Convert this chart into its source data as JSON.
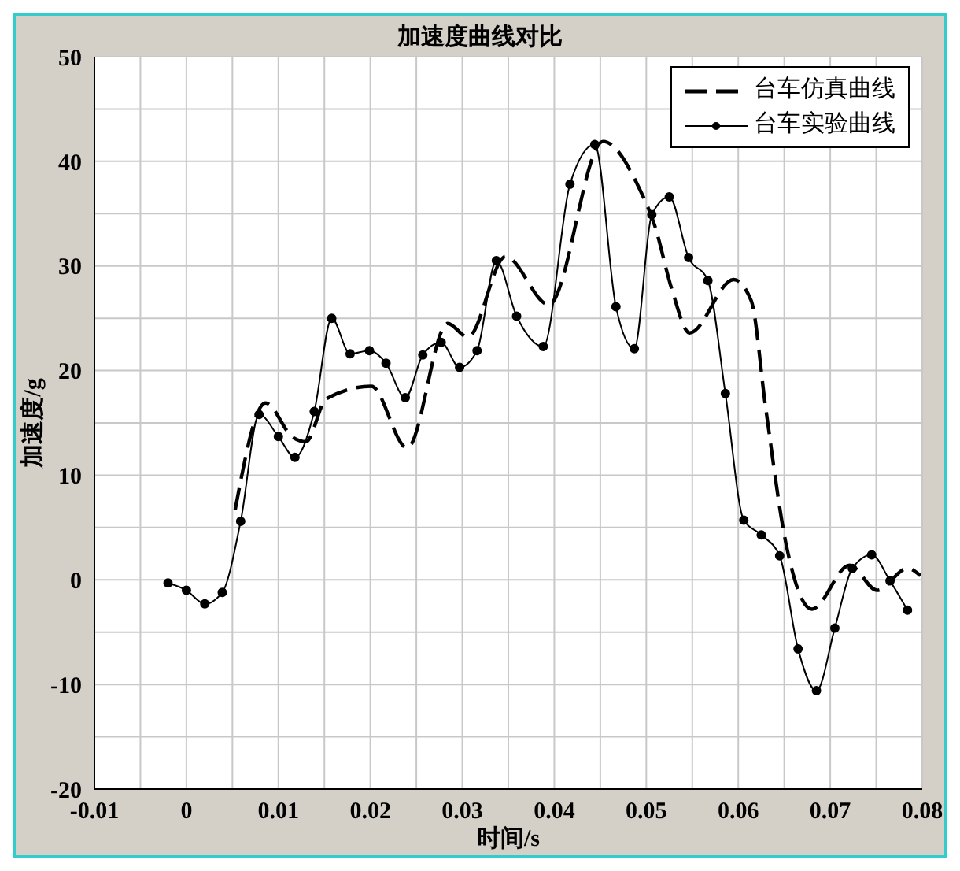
{
  "chart_data": {
    "type": "line",
    "title": "加速度曲线对比",
    "xlabel": "时间/s",
    "ylabel": "加速度/g",
    "xlim": [
      -0.01,
      0.08
    ],
    "xticks": [
      -0.01,
      {
        "value": -0.005,
        "label": null
      },
      0,
      {
        "value": 0.005,
        "label": null
      },
      0.01,
      {
        "value": 0.015,
        "label": null
      },
      0.02,
      {
        "value": 0.025,
        "label": null
      },
      0.03,
      {
        "value": 0.035,
        "label": null
      },
      0.04,
      {
        "value": 0.045,
        "label": null
      },
      0.05,
      {
        "value": 0.055,
        "label": null
      },
      0.06,
      {
        "value": 0.065,
        "label": null
      },
      0.07,
      {
        "value": 0.075,
        "label": null
      },
      0.08
    ],
    "ylim": [
      -20,
      50
    ],
    "yticks": [
      -20,
      {
        "value": -15,
        "label": null
      },
      -10,
      {
        "value": -5,
        "label": null
      },
      0,
      {
        "value": 5,
        "label": null
      },
      10,
      {
        "value": 15,
        "label": null
      },
      20,
      {
        "value": 25,
        "label": null
      },
      30,
      {
        "value": 35,
        "label": null
      },
      40,
      {
        "value": 45,
        "label": null
      },
      50
    ],
    "grid": true,
    "legend": "top right",
    "series": [
      {
        "name": "台车仿真曲线",
        "color": "#000000",
        "line_style": "dashed",
        "marker": "none",
        "x": [
          0.0053,
          0.0086,
          0.0116,
          0.013,
          0.0152,
          0.0201,
          0.024,
          0.0284,
          0.0306,
          0.0347,
          0.0394,
          0.0453,
          0.0493,
          0.0509,
          0.0528,
          0.0547,
          0.0595,
          0.0614,
          0.063,
          0.0652,
          0.068,
          0.0721,
          0.0751,
          0.0784,
          0.0798
        ],
        "values": [
          6.7,
          16.9,
          13.6,
          13.2,
          17.3,
          18.5,
          12.6,
          24.5,
          23.2,
          30.9,
          26.3,
          41.9,
          37.3,
          33.9,
          27.7,
          23.6,
          28.7,
          26.7,
          16.3,
          3.4,
          -2.8,
          1.4,
          -1.0,
          1.1,
          0.4
        ]
      },
      {
        "name": "台车实验曲线",
        "color": "#000000",
        "line_style": "solid",
        "marker": "circle",
        "x": [
          -0.002,
          0,
          0.002,
          0.0039,
          0.0059,
          0.0079,
          0.01,
          0.0118,
          0.0139,
          0.0158,
          0.0178,
          0.0199,
          0.0217,
          0.0238,
          0.0257,
          0.0277,
          0.0297,
          0.0316,
          0.0337,
          0.0359,
          0.0388,
          0.0417,
          0.0444,
          0.0467,
          0.0487,
          0.0506,
          0.0525,
          0.0546,
          0.0567,
          0.0586,
          0.0606,
          0.0625,
          0.0645,
          0.0665,
          0.0685,
          0.0705,
          0.0724,
          0.0745,
          0.0765,
          0.0784
        ],
        "values": [
          -0.3,
          -1.0,
          -2.3,
          -1.2,
          5.6,
          15.8,
          13.7,
          11.7,
          16.1,
          25.0,
          21.6,
          21.9,
          20.7,
          17.4,
          21.5,
          22.7,
          20.3,
          21.9,
          30.5,
          25.2,
          22.3,
          37.8,
          41.6,
          26.1,
          22.1,
          34.9,
          36.6,
          30.8,
          28.6,
          17.8,
          5.7,
          4.3,
          2.3,
          -6.6,
          -10.6,
          -4.6,
          1.1,
          2.4,
          -0.1,
          -2.9
        ]
      }
    ]
  }
}
